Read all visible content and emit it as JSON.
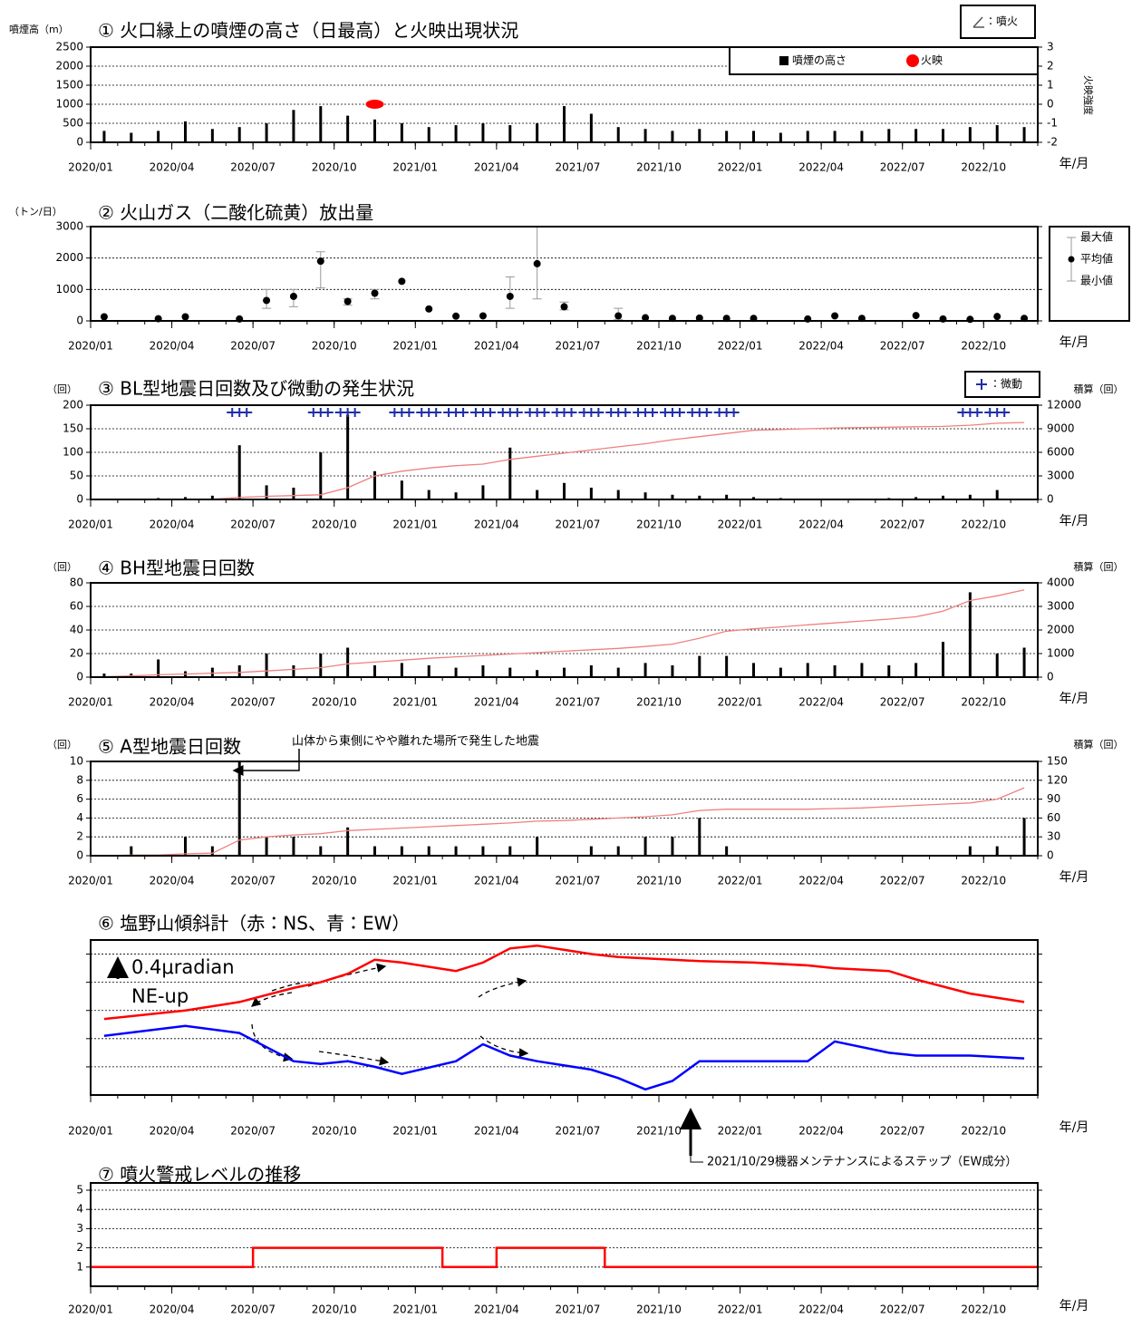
{
  "chart_data": [
    {
      "type": "bar",
      "title": "① 火口縁上の噴煙の高さ（日最高）と火映出現状況",
      "y_label": "噴煙高（m）",
      "y2_label": "火映強度",
      "x_label": "年/月",
      "note": "：噴火",
      "legend": "top-right",
      "xlim": [
        "2020/01",
        "2022/12"
      ],
      "xticks": [
        "2020/01",
        "2020/04",
        "2020/07",
        "2020/10",
        "2021/01",
        "2021/04",
        "2021/07",
        "2021/10",
        "2022/01",
        "2022/04",
        "2022/07",
        "2022/10"
      ],
      "x": [
        "2020/01",
        "2020/02",
        "2020/03",
        "2020/04",
        "2020/05",
        "2020/06",
        "2020/07",
        "2020/08",
        "2020/09",
        "2020/10",
        "2020/11",
        "2020/12",
        "2021/01",
        "2021/02",
        "2021/03",
        "2021/04",
        "2021/05",
        "2021/06",
        "2021/07",
        "2021/08",
        "2021/09",
        "2021/10",
        "2021/11",
        "2021/12",
        "2022/01",
        "2022/02",
        "2022/03",
        "2022/04",
        "2022/05",
        "2022/06",
        "2022/07",
        "2022/08",
        "2022/09",
        "2022/10",
        "2022/11"
      ],
      "ylim": [
        0,
        2500
      ],
      "yticks": [
        0,
        500,
        1000,
        1500,
        2000,
        2500
      ],
      "y2lim": [
        -2,
        3
      ],
      "y2ticks": [
        -2,
        -1,
        0,
        1,
        2,
        3
      ],
      "grid": true,
      "series": [
        {
          "name": "噴煙の高さ",
          "type": "bar",
          "color": "#000000",
          "values": [
            300,
            250,
            300,
            550,
            350,
            400,
            500,
            850,
            950,
            700,
            600,
            500,
            400,
            450,
            500,
            450,
            500,
            950,
            750,
            400,
            350,
            300,
            350,
            300,
            300,
            250,
            300,
            300,
            300,
            350,
            350,
            350,
            400,
            450,
            400
          ]
        },
        {
          "name": "火映",
          "type": "point",
          "axis": "y2",
          "color": "#ff0000",
          "x": [
            "2020/11"
          ],
          "values": [
            0
          ]
        }
      ]
    },
    {
      "type": "scatter",
      "title": "② 火山ガス（二酸化硫黄）放出量",
      "y_label": "（トン/日）",
      "x_label": "年/月",
      "legend_items": [
        "最大値",
        "平均値",
        "最小値"
      ],
      "xlim": [
        "2020/01",
        "2022/12"
      ],
      "xticks": [
        "2020/01",
        "2020/04",
        "2020/07",
        "2020/10",
        "2021/01",
        "2021/04",
        "2021/07",
        "2021/10",
        "2022/01",
        "2022/04",
        "2022/07",
        "2022/10"
      ],
      "x": [
        "2020/01",
        "2020/02",
        "2020/03",
        "2020/04",
        "2020/05",
        "2020/06",
        "2020/07",
        "2020/08",
        "2020/09",
        "2020/10",
        "2020/11",
        "2020/12",
        "2021/01",
        "2021/02",
        "2021/03",
        "2021/04",
        "2021/05",
        "2021/06",
        "2021/07",
        "2021/08",
        "2021/09",
        "2021/10",
        "2021/11",
        "2021/12",
        "2022/01",
        "2022/02",
        "2022/03",
        "2022/04",
        "2022/05",
        "2022/06",
        "2022/07",
        "2022/08",
        "2022/09",
        "2022/10",
        "2022/11"
      ],
      "ylim": [
        0,
        3000
      ],
      "yticks": [
        0,
        1000,
        2000,
        3000
      ],
      "grid": true,
      "series": [
        {
          "type": "errorpoint",
          "color": "#000000",
          "err_color": "#999999",
          "values": [
            130,
            null,
            70,
            130,
            null,
            60,
            650,
            780,
            1900,
            620,
            880,
            1260,
            380,
            150,
            160,
            780,
            1820,
            450,
            null,
            160,
            100,
            80,
            90,
            80,
            80,
            null,
            60,
            160,
            80,
            null,
            170,
            60,
            50,
            140,
            80
          ],
          "min": [
            null,
            null,
            null,
            null,
            null,
            null,
            400,
            450,
            1050,
            500,
            700,
            null,
            null,
            null,
            null,
            400,
            700,
            350,
            null,
            50,
            null,
            null,
            null,
            null,
            null,
            null,
            null,
            null,
            null,
            null,
            null,
            null,
            null,
            null,
            null
          ],
          "max": [
            null,
            null,
            null,
            null,
            null,
            null,
            1000,
            1000,
            2200,
            700,
            1000,
            null,
            null,
            null,
            null,
            1400,
            3000,
            600,
            null,
            400,
            null,
            null,
            null,
            null,
            null,
            null,
            null,
            null,
            null,
            null,
            null,
            null,
            null,
            null,
            null
          ]
        }
      ]
    },
    {
      "type": "bar",
      "title": "③ BL型地震日回数及び微動の発生状況",
      "y_label": "（回）",
      "y2_label": "積算（回）",
      "x_label": "年/月",
      "note": "：微動",
      "xlim": [
        "2020/01",
        "2022/12"
      ],
      "xticks": [
        "2020/01",
        "2020/04",
        "2020/07",
        "2020/10",
        "2021/01",
        "2021/04",
        "2021/07",
        "2021/10",
        "2022/01",
        "2022/04",
        "2022/07",
        "2022/10"
      ],
      "x": [
        "2020/01",
        "2020/02",
        "2020/03",
        "2020/04",
        "2020/05",
        "2020/06",
        "2020/07",
        "2020/08",
        "2020/09",
        "2020/10",
        "2020/11",
        "2020/12",
        "2021/01",
        "2021/02",
        "2021/03",
        "2021/04",
        "2021/05",
        "2021/06",
        "2021/07",
        "2021/08",
        "2021/09",
        "2021/10",
        "2021/11",
        "2021/12",
        "2022/01",
        "2022/02",
        "2022/03",
        "2022/04",
        "2022/05",
        "2022/06",
        "2022/07",
        "2022/08",
        "2022/09",
        "2022/10",
        "2022/11"
      ],
      "ylim": [
        0,
        200
      ],
      "yticks": [
        0,
        50,
        100,
        150,
        200
      ],
      "y2lim": [
        0,
        12000
      ],
      "y2ticks": [
        0,
        3000,
        6000,
        9000,
        12000
      ],
      "grid": true,
      "series": [
        {
          "type": "bar",
          "color": "#000000",
          "values": [
            2,
            2,
            3,
            5,
            8,
            115,
            30,
            25,
            100,
            180,
            60,
            40,
            20,
            15,
            30,
            110,
            20,
            35,
            25,
            20,
            15,
            10,
            8,
            10,
            5,
            3,
            2,
            2,
            2,
            3,
            5,
            8,
            10,
            20,
            2
          ]
        },
        {
          "type": "line",
          "axis": "y2",
          "color": "#f08080",
          "values": [
            0,
            0,
            0,
            20,
            50,
            250,
            400,
            500,
            600,
            1500,
            3000,
            3600,
            4000,
            4300,
            4500,
            5100,
            5500,
            5900,
            6300,
            6700,
            7100,
            7600,
            8000,
            8400,
            8800,
            8900,
            9000,
            9100,
            9150,
            9200,
            9250,
            9300,
            9450,
            9700,
            9800
          ]
        },
        {
          "type": "cross",
          "color": "#1f2fa8",
          "x": [
            "2020/06",
            "2020/09",
            "2020/10",
            "2020/12",
            "2021/01",
            "2021/02",
            "2021/03",
            "2021/04",
            "2021/05",
            "2021/06",
            "2021/07",
            "2021/08",
            "2021/09",
            "2021/10",
            "2021/11",
            "2021/12",
            "2022/09",
            "2022/10"
          ]
        }
      ]
    },
    {
      "type": "bar",
      "title": "④ BH型地震日回数",
      "y_label": "（回）",
      "y2_label": "積算（回）",
      "x_label": "年/月",
      "xlim": [
        "2020/01",
        "2022/12"
      ],
      "xticks": [
        "2020/01",
        "2020/04",
        "2020/07",
        "2020/10",
        "2021/01",
        "2021/04",
        "2021/07",
        "2021/10",
        "2022/01",
        "2022/04",
        "2022/07",
        "2022/10"
      ],
      "x": [
        "2020/01",
        "2020/02",
        "2020/03",
        "2020/04",
        "2020/05",
        "2020/06",
        "2020/07",
        "2020/08",
        "2020/09",
        "2020/10",
        "2020/11",
        "2020/12",
        "2021/01",
        "2021/02",
        "2021/03",
        "2021/04",
        "2021/05",
        "2021/06",
        "2021/07",
        "2021/08",
        "2021/09",
        "2021/10",
        "2021/11",
        "2021/12",
        "2022/01",
        "2022/02",
        "2022/03",
        "2022/04",
        "2022/05",
        "2022/06",
        "2022/07",
        "2022/08",
        "2022/09",
        "2022/10",
        "2022/11"
      ],
      "ylim": [
        0,
        80
      ],
      "yticks": [
        0,
        20,
        40,
        60,
        80
      ],
      "y2lim": [
        0,
        4000
      ],
      "y2ticks": [
        0,
        1000,
        2000,
        3000,
        4000
      ],
      "grid": true,
      "series": [
        {
          "type": "bar",
          "color": "#000000",
          "values": [
            3,
            3,
            15,
            5,
            8,
            10,
            20,
            10,
            20,
            25,
            10,
            12,
            10,
            8,
            10,
            8,
            6,
            8,
            10,
            8,
            12,
            10,
            18,
            18,
            12,
            8,
            12,
            10,
            12,
            10,
            12,
            30,
            72,
            20,
            25
          ]
        },
        {
          "type": "line",
          "axis": "y2",
          "color": "#f08080",
          "values": [
            20,
            50,
            100,
            130,
            170,
            200,
            260,
            330,
            400,
            560,
            640,
            720,
            800,
            860,
            920,
            980,
            1040,
            1100,
            1160,
            1220,
            1300,
            1400,
            1650,
            1950,
            2050,
            2130,
            2220,
            2300,
            2380,
            2460,
            2560,
            2800,
            3250,
            3450,
            3700
          ]
        }
      ]
    },
    {
      "type": "bar",
      "title": "⑤ A型地震日回数",
      "y_label": "（回）",
      "y2_label": "積算（回）",
      "x_label": "年/月",
      "annotation": "山体から東側にやや離れた場所で発生した地震",
      "xlim": [
        "2020/01",
        "2022/12"
      ],
      "xticks": [
        "2020/01",
        "2020/04",
        "2020/07",
        "2020/10",
        "2021/01",
        "2021/04",
        "2021/07",
        "2021/10",
        "2022/01",
        "2022/04",
        "2022/07",
        "2022/10"
      ],
      "x": [
        "2020/01",
        "2020/02",
        "2020/03",
        "2020/04",
        "2020/05",
        "2020/06",
        "2020/07",
        "2020/08",
        "2020/09",
        "2020/10",
        "2020/11",
        "2020/12",
        "2021/01",
        "2021/02",
        "2021/03",
        "2021/04",
        "2021/05",
        "2021/06",
        "2021/07",
        "2021/08",
        "2021/09",
        "2021/10",
        "2021/11",
        "2021/12",
        "2022/01",
        "2022/02",
        "2022/03",
        "2022/04",
        "2022/05",
        "2022/06",
        "2022/07",
        "2022/08",
        "2022/09",
        "2022/10",
        "2022/11"
      ],
      "ylim": [
        0,
        10
      ],
      "yticks": [
        0,
        2,
        4,
        6,
        8,
        10
      ],
      "y2lim": [
        0,
        150
      ],
      "y2ticks": [
        0,
        30,
        60,
        90,
        120,
        150
      ],
      "grid": true,
      "series": [
        {
          "type": "bar",
          "color": "#000000",
          "values": [
            0,
            1,
            0,
            2,
            1,
            10,
            2,
            2,
            1,
            3,
            1,
            1,
            1,
            1,
            1,
            1,
            2,
            0,
            1,
            1,
            2,
            2,
            4,
            1,
            0,
            0,
            0,
            0,
            0,
            0,
            0,
            0,
            1,
            1,
            4
          ]
        },
        {
          "type": "line",
          "axis": "y2",
          "color": "#f08080",
          "values": [
            0,
            1,
            1,
            3,
            4,
            25,
            30,
            33,
            35,
            40,
            42,
            44,
            46,
            48,
            50,
            52,
            55,
            56,
            58,
            60,
            62,
            65,
            72,
            74,
            74,
            74,
            74,
            75,
            76,
            78,
            80,
            82,
            84,
            90,
            108
          ]
        }
      ]
    },
    {
      "type": "line",
      "title": "⑥ 塩野山傾斜計（赤：NS、青：EW）",
      "x_label": "年/月",
      "scale_label": "0.4μradian",
      "direction_label": "NE-up",
      "step_note": "2021/10/29機器メンテナンスによるステップ（EW成分）",
      "xlim": [
        "2020/01",
        "2022/12"
      ],
      "xticks": [
        "2020/01",
        "2020/04",
        "2020/07",
        "2020/10",
        "2021/01",
        "2021/04",
        "2021/07",
        "2021/10",
        "2022/01",
        "2022/04",
        "2022/07",
        "2022/10"
      ],
      "x": [
        "2020/01",
        "2020/04",
        "2020/06",
        "2020/08",
        "2020/09",
        "2020/10",
        "2020/11",
        "2020/12",
        "2021/02",
        "2021/03",
        "2021/04",
        "2021/05",
        "2021/07",
        "2021/08",
        "2021/09",
        "2021/10",
        "2021/11",
        "2022/01",
        "2022/03",
        "2022/04",
        "2022/06",
        "2022/07",
        "2022/09",
        "2022/11"
      ],
      "ylim": [
        0,
        5.5
      ],
      "yticks": [
        1,
        2,
        3,
        4,
        5
      ],
      "ytick_labels": false,
      "grid": true,
      "series": [
        {
          "type": "line",
          "color": "#ff0000",
          "values": [
            2.7,
            3.0,
            3.3,
            3.8,
            4.0,
            4.3,
            4.8,
            4.7,
            4.4,
            4.7,
            5.2,
            5.3,
            5.0,
            4.9,
            4.85,
            4.8,
            4.75,
            4.7,
            4.6,
            4.5,
            4.4,
            4.1,
            3.6,
            3.3
          ]
        },
        {
          "type": "line",
          "color": "#0000ff",
          "values": [
            2.1,
            2.45,
            2.2,
            1.2,
            1.1,
            1.2,
            1.0,
            0.75,
            1.2,
            1.8,
            1.4,
            1.2,
            0.9,
            0.6,
            0.2,
            0.5,
            1.2,
            1.2,
            1.2,
            1.9,
            1.5,
            1.4,
            1.4,
            1.3
          ]
        }
      ]
    },
    {
      "type": "step",
      "title": "⑦ 噴火警戒レベルの推移",
      "x_label": "年/月",
      "xlim": [
        "2020/01",
        "2022/12"
      ],
      "xticks": [
        "2020/01",
        "2020/04",
        "2020/07",
        "2020/10",
        "2021/01",
        "2021/04",
        "2021/07",
        "2021/10",
        "2022/01",
        "2022/04",
        "2022/07",
        "2022/10"
      ],
      "x": [
        "2020/01",
        "2020/07",
        "2021/02",
        "2021/04",
        "2021/08"
      ],
      "ylim": [
        0,
        5
      ],
      "yticks": [
        1,
        2,
        3,
        4,
        5
      ],
      "grid": true,
      "series": [
        {
          "type": "step",
          "color": "#ff0000",
          "values": [
            1,
            2,
            1,
            2,
            1
          ]
        }
      ]
    }
  ]
}
